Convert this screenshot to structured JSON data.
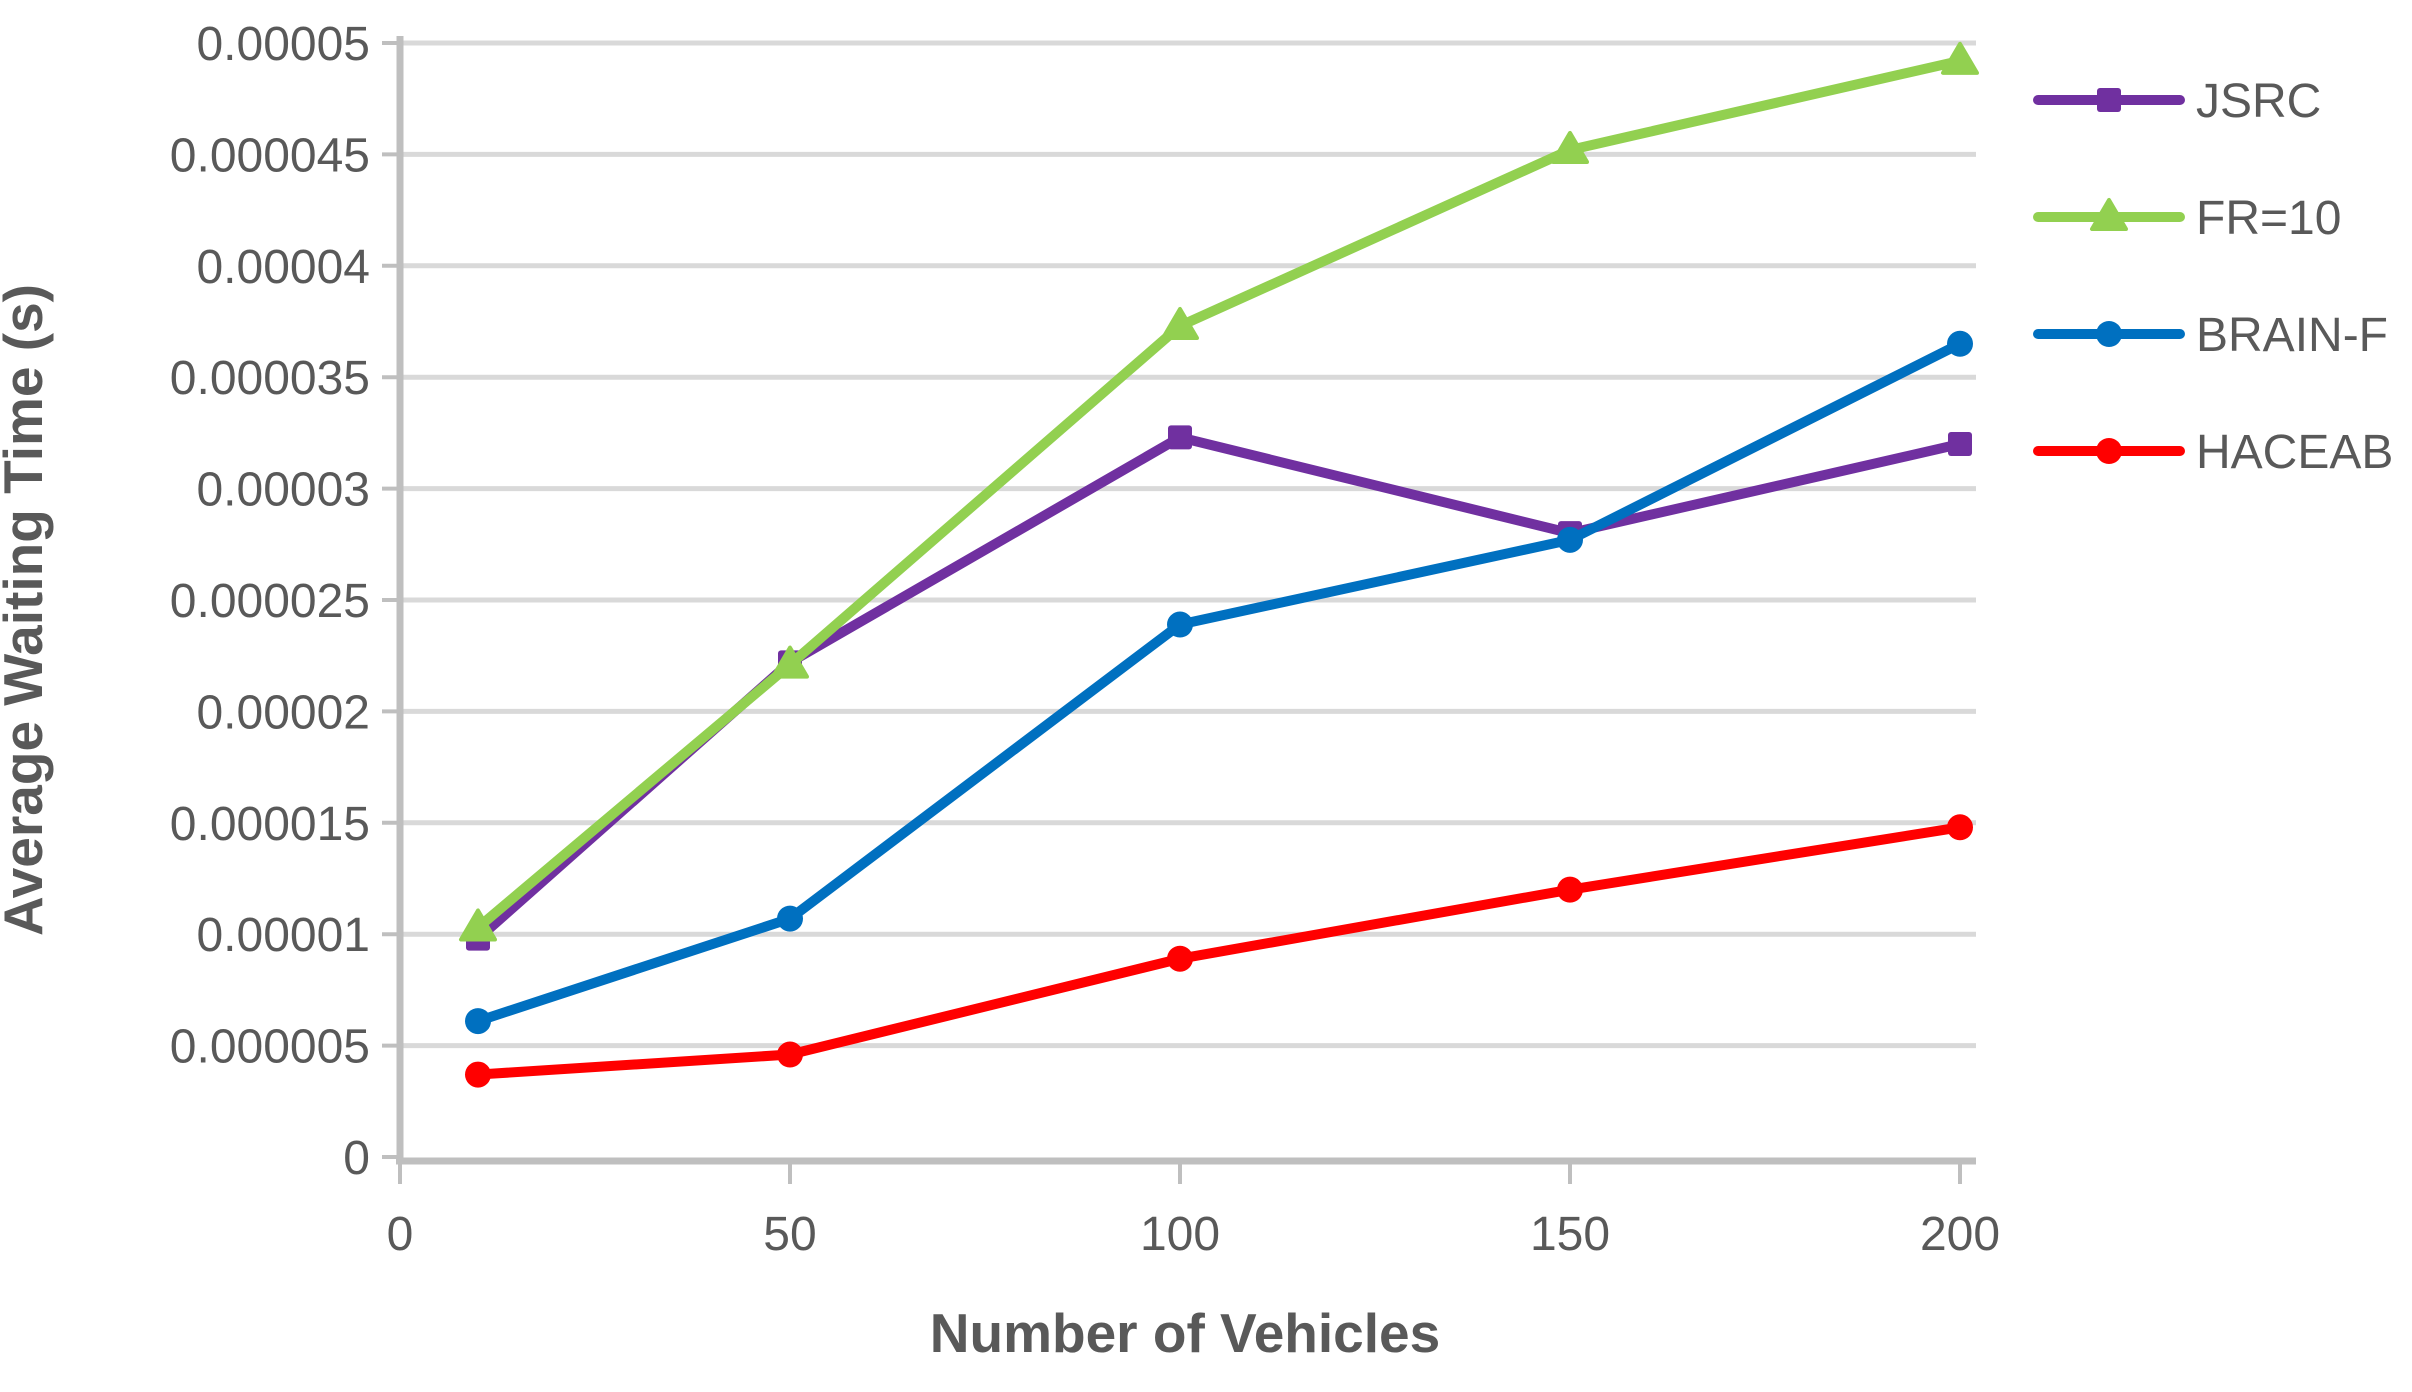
{
  "figure": {
    "background": "#FFFFFF",
    "text_color": "#595959",
    "axis_color": "#BFBFBF",
    "gridline_color": "#D9D9D9"
  },
  "chart_data": {
    "type": "line",
    "title": "",
    "xlabel": "Number of Vehicles",
    "ylabel": "Average Waiting Time (s)",
    "x": [
      10,
      50,
      100,
      150,
      200
    ],
    "x_tick_labels": [
      "0",
      "50",
      "100",
      "150",
      "200"
    ],
    "x_tick_values": [
      0,
      50,
      100,
      150,
      200
    ],
    "xlim": [
      0,
      200
    ],
    "ylim": [
      0,
      5e-05
    ],
    "y_tick_labels": [
      "0",
      "0.000005",
      "0.00001",
      "0.000015",
      "0.00002",
      "0.000025",
      "0.00003",
      "0.000035",
      "0.00004",
      "0.000045",
      "0.00005"
    ],
    "y_tick_values": [
      0,
      5e-06,
      1e-05,
      1.5e-05,
      2e-05,
      2.5e-05,
      3e-05,
      3.5e-05,
      4e-05,
      4.5e-05,
      5e-05
    ],
    "grid": "horizontal",
    "legend_position": "right",
    "series": [
      {
        "name": "JSRC",
        "color": "#7030A0",
        "marker": "square",
        "values": [
          9.8e-06,
          2.22e-05,
          3.23e-05,
          2.8e-05,
          3.2e-05
        ]
      },
      {
        "name": "FR=10",
        "color": "#92D050",
        "marker": "triangle",
        "values": [
          1.03e-05,
          2.21e-05,
          3.73e-05,
          4.52e-05,
          4.92e-05
        ]
      },
      {
        "name": "BRAIN-F",
        "color": "#0070C0",
        "marker": "circle",
        "values": [
          6.1e-06,
          1.07e-05,
          2.39e-05,
          2.77e-05,
          3.65e-05
        ]
      },
      {
        "name": "HACEAB",
        "color": "#FF0000",
        "marker": "circle",
        "values": [
          3.7e-06,
          4.6e-06,
          8.9e-06,
          1.2e-05,
          1.48e-05
        ]
      }
    ]
  }
}
